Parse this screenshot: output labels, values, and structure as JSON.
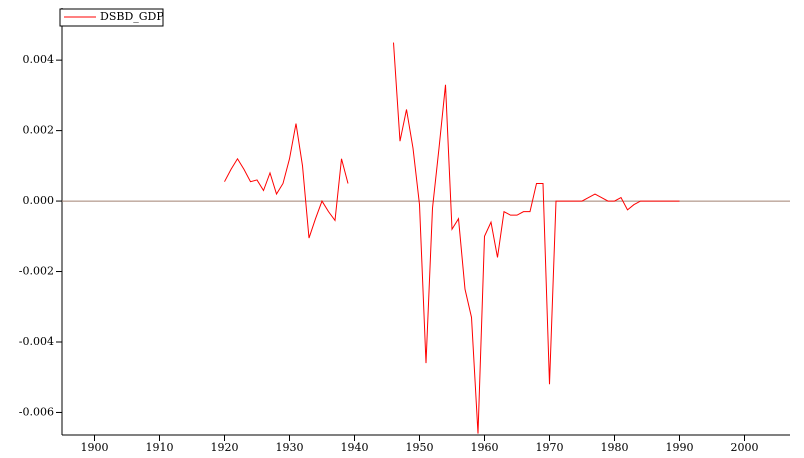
{
  "chart_data": {
    "type": "line",
    "x": [
      1920,
      1921,
      1922,
      1923,
      1924,
      1925,
      1926,
      1927,
      1928,
      1929,
      1930,
      1931,
      1932,
      1933,
      1934,
      1935,
      1936,
      1937,
      1938,
      1939,
      1940,
      1946,
      1947,
      1948,
      1949,
      1950,
      1951,
      1952,
      1953,
      1954,
      1955,
      1956,
      1957,
      1958,
      1959,
      1960,
      1961,
      1962,
      1963,
      1964,
      1965,
      1966,
      1967,
      1968,
      1969,
      1970,
      1971,
      1972,
      1973,
      1974,
      1975,
      1976,
      1977,
      1978,
      1979,
      1980,
      1981,
      1982,
      1983,
      1984,
      1985,
      1986,
      1987,
      1988,
      1989,
      1990
    ],
    "series": [
      {
        "name": "DSBD_GDP",
        "color": "#ff0000",
        "values": [
          0.00055,
          0.0009,
          0.0012,
          0.0009,
          0.00055,
          0.0006,
          0.0003,
          0.0008,
          0.0002,
          0.0005,
          0.0012,
          0.0022,
          0.001,
          -0.00105,
          -0.0005,
          0.0,
          -0.0003,
          -0.00055,
          0.0012,
          0.0005,
          null,
          0.0045,
          0.0017,
          0.0026,
          0.0015,
          -0.0001,
          -0.0046,
          -0.0002,
          0.0015,
          0.0033,
          -0.0008,
          -0.0005,
          -0.0025,
          -0.0033,
          -0.0066,
          -0.001,
          -0.0006,
          -0.0016,
          -0.0003,
          -0.0004,
          -0.0004,
          -0.0003,
          -0.0003,
          0.0005,
          0.0005,
          -0.0052,
          0.0,
          0.0,
          0.0,
          0.0,
          0.0,
          0.0001,
          0.0002,
          0.0001,
          0.0,
          0.0,
          0.0001,
          -0.00025,
          -0.0001,
          0.0,
          0.0,
          0.0,
          0.0,
          0.0,
          0.0,
          0.0
        ]
      }
    ],
    "xlim": [
      1895,
      2007
    ],
    "ylim": [
      -0.00664,
      0.00548
    ],
    "xticks": [
      1900,
      1910,
      1920,
      1930,
      1940,
      1950,
      1960,
      1970,
      1980,
      1990,
      2000
    ],
    "yticks": [
      {
        "value": -0.006,
        "label": "-0.006"
      },
      {
        "value": -0.004,
        "label": "-0.004"
      },
      {
        "value": -0.002,
        "label": "-0.002"
      },
      {
        "value": 0,
        "label": "0.000"
      },
      {
        "value": 0.002,
        "label": "0.002"
      },
      {
        "value": 0.004,
        "label": "0.004"
      }
    ],
    "zero_line": true
  }
}
